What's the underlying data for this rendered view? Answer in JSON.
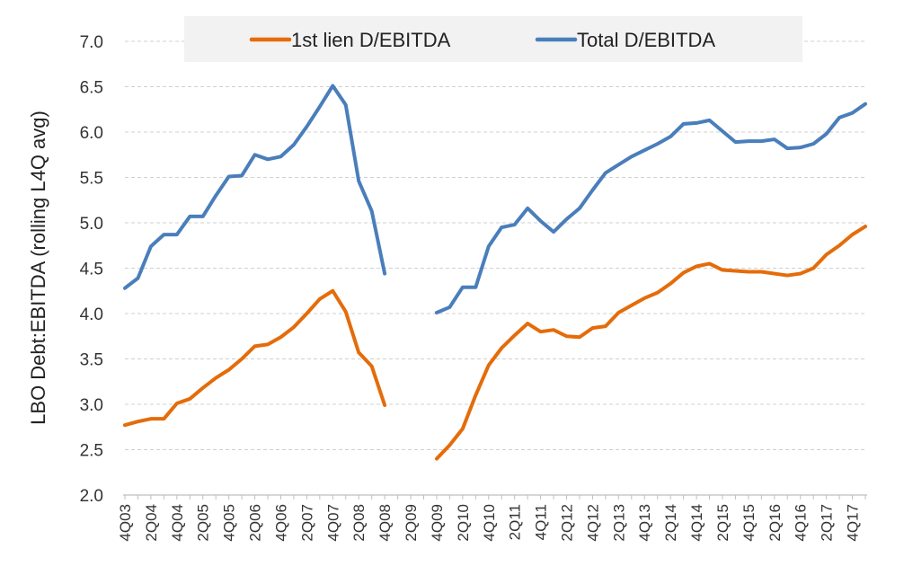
{
  "chart_data": {
    "type": "line",
    "title": "",
    "ylabel": "LBO Debt:EBITDA (rolling L4Q avg)",
    "xlabel": "",
    "ylim": [
      2.0,
      7.0
    ],
    "yticks": [
      "2.0",
      "2.5",
      "3.0",
      "3.5",
      "4.0",
      "4.5",
      "5.0",
      "5.5",
      "6.0",
      "6.5",
      "7.0"
    ],
    "grid": "horizontal dashed",
    "legend_position": "top",
    "x": [
      "4Q03",
      "1Q04",
      "2Q04",
      "3Q04",
      "4Q04",
      "1Q05",
      "2Q05",
      "3Q05",
      "4Q05",
      "1Q06",
      "2Q06",
      "3Q06",
      "4Q06",
      "1Q07",
      "2Q07",
      "3Q07",
      "4Q07",
      "1Q08",
      "2Q08",
      "3Q08",
      "4Q08",
      "1Q09",
      "2Q09",
      "3Q09",
      "4Q09",
      "1Q10",
      "2Q10",
      "3Q10",
      "4Q10",
      "1Q11",
      "2Q11",
      "3Q11",
      "4Q11",
      "1Q12",
      "2Q12",
      "3Q12",
      "4Q12",
      "1Q13",
      "2Q13",
      "3Q13",
      "4Q13",
      "1Q14",
      "2Q14",
      "3Q14",
      "4Q14",
      "1Q15",
      "2Q15",
      "3Q15",
      "4Q15",
      "1Q16",
      "2Q16",
      "3Q16",
      "4Q16",
      "1Q17",
      "2Q17",
      "3Q17",
      "4Q17",
      "1Q18"
    ],
    "xtick_labels": [
      "4Q03",
      "2Q04",
      "4Q04",
      "2Q05",
      "4Q05",
      "2Q06",
      "4Q06",
      "2Q07",
      "4Q07",
      "2Q08",
      "4Q08",
      "2Q09",
      "4Q09",
      "2Q10",
      "4Q10",
      "2Q11",
      "4Q11",
      "2Q12",
      "4Q12",
      "2Q13",
      "4Q13",
      "2Q14",
      "4Q14",
      "2Q15",
      "4Q15",
      "2Q16",
      "4Q16",
      "2Q17",
      "4Q17"
    ],
    "series": [
      {
        "name": "1st lien D/EBITDA",
        "color": "#E46C0A",
        "values": [
          2.77,
          2.81,
          2.84,
          2.84,
          3.01,
          3.06,
          3.18,
          3.29,
          3.38,
          3.5,
          3.64,
          3.66,
          3.74,
          3.85,
          4.0,
          4.16,
          4.25,
          4.02,
          3.57,
          3.42,
          2.99,
          null,
          null,
          null,
          2.4,
          2.55,
          2.73,
          3.1,
          3.43,
          3.62,
          3.76,
          3.89,
          3.8,
          3.82,
          3.75,
          3.74,
          3.84,
          3.86,
          4.01,
          4.09,
          4.17,
          4.23,
          4.33,
          4.45,
          4.52,
          4.55,
          4.48,
          4.47,
          4.46,
          4.46,
          4.44,
          4.42,
          4.44,
          4.5,
          4.65,
          4.75,
          4.87,
          4.96
        ]
      },
      {
        "name": "Total D/EBITDA",
        "color": "#4A7EBB",
        "values": [
          4.28,
          4.39,
          4.74,
          4.87,
          4.87,
          5.07,
          5.07,
          5.3,
          5.51,
          5.52,
          5.75,
          5.7,
          5.73,
          5.86,
          6.06,
          6.28,
          6.51,
          6.3,
          5.46,
          5.13,
          4.44,
          null,
          null,
          null,
          4.01,
          4.07,
          4.29,
          4.29,
          4.74,
          4.95,
          4.98,
          5.16,
          5.02,
          4.9,
          5.04,
          5.16,
          5.36,
          5.55,
          5.64,
          5.73,
          5.8,
          5.87,
          5.95,
          6.09,
          6.1,
          6.13,
          6.01,
          5.89,
          5.9,
          5.9,
          5.92,
          5.82,
          5.83,
          5.87,
          5.98,
          6.16,
          6.21,
          6.31
        ]
      }
    ]
  }
}
